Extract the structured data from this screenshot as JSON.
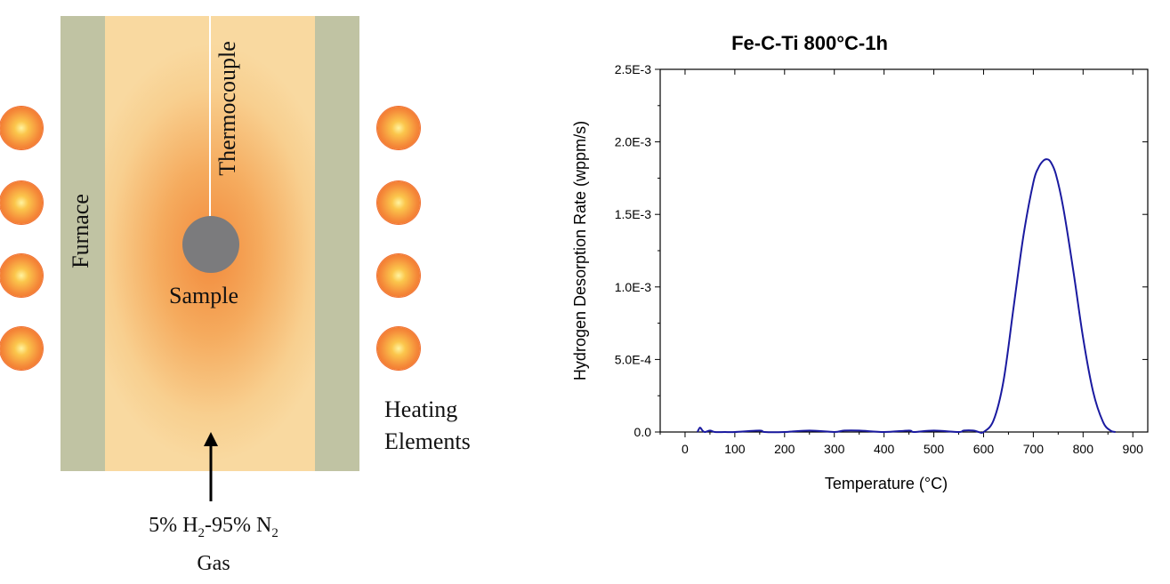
{
  "schematic": {
    "furnace_label": "Furnace",
    "thermocouple_label": "Thermocouple",
    "sample_label": "Sample",
    "heating_label_line1": "Heating",
    "heating_label_line2": "Elements",
    "gas_label_line1_pre": "5% H",
    "gas_label_line1_sub1": "2",
    "gas_label_line1_mid": "-95% N",
    "gas_label_line1_sub2": "2",
    "gas_label_line2": "Gas",
    "colors": {
      "wall": "#c0c3a3",
      "chamber": "#f9d9a0",
      "hot_zone": "#f28a3c",
      "sample": "#7b7b7d",
      "heating_element": "#ee5a22"
    }
  },
  "chart_data": {
    "type": "line",
    "title": "Fe-C-Ti 800°C-1h",
    "xlabel": "Temperature (°C)",
    "ylabel": "Hydrogen Desorption Rate (wppm/s)",
    "xlim": [
      -50,
      930
    ],
    "ylim": [
      0,
      0.0025
    ],
    "x_ticks": [
      0,
      100,
      200,
      300,
      400,
      500,
      600,
      700,
      800,
      900
    ],
    "x_tick_labels": [
      "0",
      "100",
      "200",
      "300",
      "400",
      "500",
      "600",
      "700",
      "800",
      "900"
    ],
    "y_ticks": [
      0,
      0.0005,
      0.001,
      0.0015,
      0.002,
      0.0025
    ],
    "y_tick_labels": [
      "0.0",
      "5.0E-4",
      "1.0E-3",
      "1.5E-3",
      "2.0E-3",
      "2.5E-3"
    ],
    "grid": false,
    "line_color": "#1a1aa0",
    "series": [
      {
        "x": [
          25,
          30,
          35,
          40,
          50,
          60,
          80,
          100,
          150,
          160,
          200,
          250,
          300,
          320,
          350,
          400,
          450,
          460,
          500,
          550,
          560,
          580,
          590,
          600,
          620,
          640,
          660,
          680,
          700,
          710,
          720,
          728,
          735,
          745,
          760,
          780,
          800,
          820,
          840,
          855,
          865
        ],
        "y": [
          0.0,
          3e-05,
          1e-05,
          0.0,
          1e-05,
          0.0,
          0.0,
          0.0,
          1e-05,
          0.0,
          0.0,
          1e-05,
          0.0,
          1e-05,
          1e-05,
          0.0,
          1e-05,
          0.0,
          1e-05,
          0.0,
          1e-05,
          1e-05,
          0.0,
          0.0,
          8e-05,
          0.00035,
          0.00085,
          0.00135,
          0.00172,
          0.00182,
          0.00187,
          0.00188,
          0.00186,
          0.00178,
          0.00155,
          0.00112,
          0.00065,
          0.00028,
          7e-05,
          1e-05,
          0.0
        ]
      }
    ]
  }
}
